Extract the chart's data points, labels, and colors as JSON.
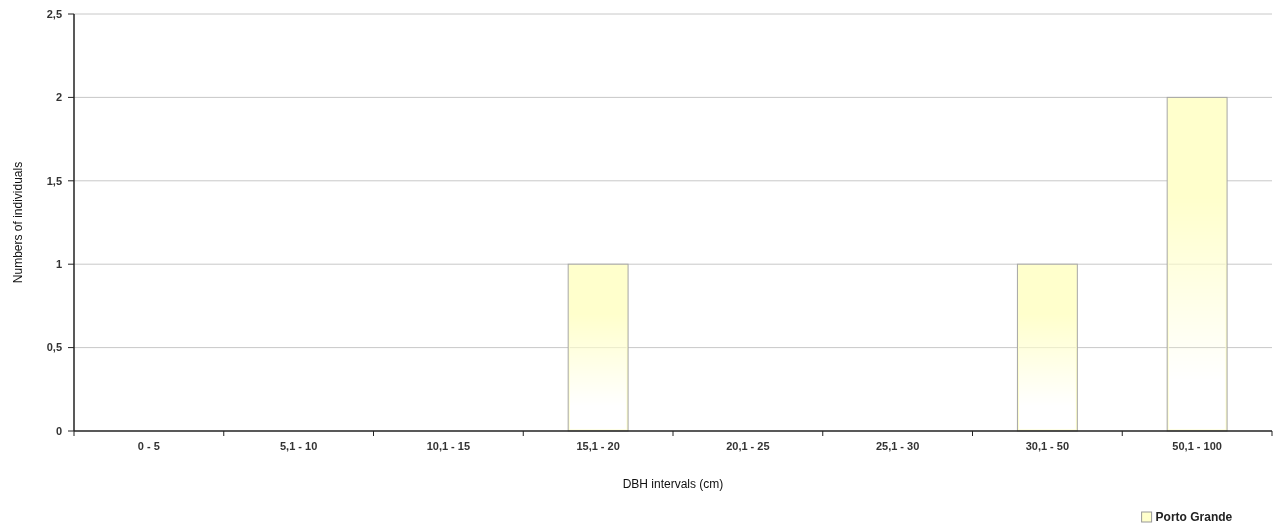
{
  "chart_data": {
    "type": "bar",
    "xlabel": "DBH intervals (cm)",
    "ylabel": "Numbers of individuals",
    "categories": [
      "0 - 5",
      "5,1 - 10",
      "10,1 - 15",
      "15,1 - 20",
      "20,1 - 25",
      "25,1 - 30",
      "30,1 - 50",
      "50,1 - 100"
    ],
    "series": [
      {
        "name": "Porto Grande",
        "color": "#ffffcc",
        "values": [
          0,
          0,
          0,
          1,
          0,
          0,
          1,
          2
        ]
      }
    ],
    "ylim": [
      0,
      2.5
    ],
    "yticks": [
      0,
      {
        "value": 0.5,
        "label": "0,5"
      },
      1,
      {
        "value": 1.5,
        "label": "1,5"
      },
      2,
      {
        "value": 2.5,
        "label": "2,5"
      }
    ],
    "grid": "y",
    "legend": "bottom right"
  }
}
